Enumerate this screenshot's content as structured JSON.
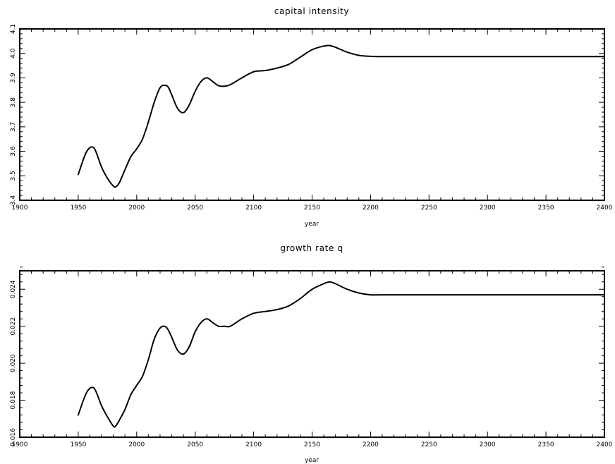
{
  "chart_data": [
    {
      "type": "line",
      "title": "capital intensity",
      "xlabel": "year",
      "ylabel": "",
      "xlim": [
        1900,
        2400
      ],
      "ylim": [
        3.4,
        4.1
      ],
      "x_ticks": [
        1900,
        1950,
        2000,
        2050,
        2100,
        2150,
        2200,
        2250,
        2300,
        2350,
        2400
      ],
      "x_tick_labels": [
        "1900",
        "1950",
        "2000",
        "2050",
        "2100",
        "2150",
        "2200",
        "2250",
        "2300",
        "2350",
        "2400"
      ],
      "y_ticks": [
        3.4,
        3.5,
        3.6,
        3.7,
        3.8,
        3.9,
        4.0,
        4.1
      ],
      "y_tick_labels": [
        "3.4",
        "3.5",
        "3.6",
        "3.7",
        "3.8",
        "3.9",
        "4.0",
        "4.1"
      ],
      "grid": false,
      "series": [
        {
          "x": [
            1950,
            1955,
            1958,
            1962,
            1965,
            1970,
            1975,
            1980,
            1982,
            1985,
            1990,
            1995,
            2000,
            2005,
            2010,
            2015,
            2020,
            2024,
            2027,
            2030,
            2035,
            2040,
            2045,
            2050,
            2055,
            2060,
            2065,
            2070,
            2075,
            2080,
            2090,
            2100,
            2110,
            2120,
            2130,
            2140,
            2150,
            2160,
            2165,
            2170,
            2180,
            2190,
            2200,
            2210,
            2250,
            2300,
            2350,
            2400
          ],
          "y": [
            3.505,
            3.575,
            3.605,
            3.618,
            3.6,
            3.535,
            3.49,
            3.458,
            3.455,
            3.47,
            3.525,
            3.578,
            3.61,
            3.65,
            3.72,
            3.8,
            3.86,
            3.87,
            3.862,
            3.83,
            3.775,
            3.758,
            3.79,
            3.845,
            3.885,
            3.9,
            3.885,
            3.868,
            3.866,
            3.872,
            3.9,
            3.925,
            3.93,
            3.94,
            3.955,
            3.985,
            4.015,
            4.03,
            4.032,
            4.025,
            4.005,
            3.992,
            3.988,
            3.987,
            3.987,
            3.987,
            3.987,
            3.987
          ]
        }
      ]
    },
    {
      "type": "line",
      "title": "growth rate q",
      "xlabel": "year",
      "ylabel": "",
      "xlim": [
        1900,
        2400
      ],
      "ylim": [
        0.016,
        0.025
      ],
      "x_ticks": [
        1900,
        1950,
        2000,
        2050,
        2100,
        2150,
        2200,
        2250,
        2300,
        2350,
        2400
      ],
      "x_tick_labels": [
        "1900",
        "1950",
        "2000",
        "2050",
        "2100",
        "2150",
        "2200",
        "2250",
        "2300",
        "2350",
        "2400"
      ],
      "y_ticks": [
        0.016,
        0.018,
        0.02,
        0.022,
        0.024
      ],
      "y_tick_labels": [
        "0.016",
        "0.018",
        "0.020",
        "0.022",
        "0.024"
      ],
      "grid": false,
      "series": [
        {
          "x": [
            1950,
            1955,
            1958,
            1962,
            1965,
            1970,
            1975,
            1980,
            1982,
            1985,
            1990,
            1995,
            2000,
            2005,
            2010,
            2015,
            2020,
            2024,
            2027,
            2030,
            2035,
            2040,
            2045,
            2050,
            2055,
            2060,
            2065,
            2070,
            2075,
            2080,
            2090,
            2100,
            2110,
            2120,
            2130,
            2140,
            2150,
            2160,
            2165,
            2170,
            2180,
            2190,
            2200,
            2210,
            2250,
            2300,
            2350,
            2400
          ],
          "y": [
            0.0172,
            0.0181,
            0.0185,
            0.0187,
            0.0185,
            0.0177,
            0.0171,
            0.0166,
            0.0166,
            0.0169,
            0.0175,
            0.0183,
            0.0188,
            0.0193,
            0.0202,
            0.0213,
            0.0219,
            0.022,
            0.0218,
            0.0214,
            0.0207,
            0.0205,
            0.0209,
            0.0217,
            0.0222,
            0.0224,
            0.0222,
            0.022,
            0.022,
            0.022,
            0.0224,
            0.0227,
            0.0228,
            0.0229,
            0.0231,
            0.0235,
            0.024,
            0.0243,
            0.0244,
            0.0243,
            0.024,
            0.0238,
            0.0237,
            0.0237,
            0.0237,
            0.0237,
            0.0237,
            0.0237
          ]
        }
      ]
    }
  ]
}
